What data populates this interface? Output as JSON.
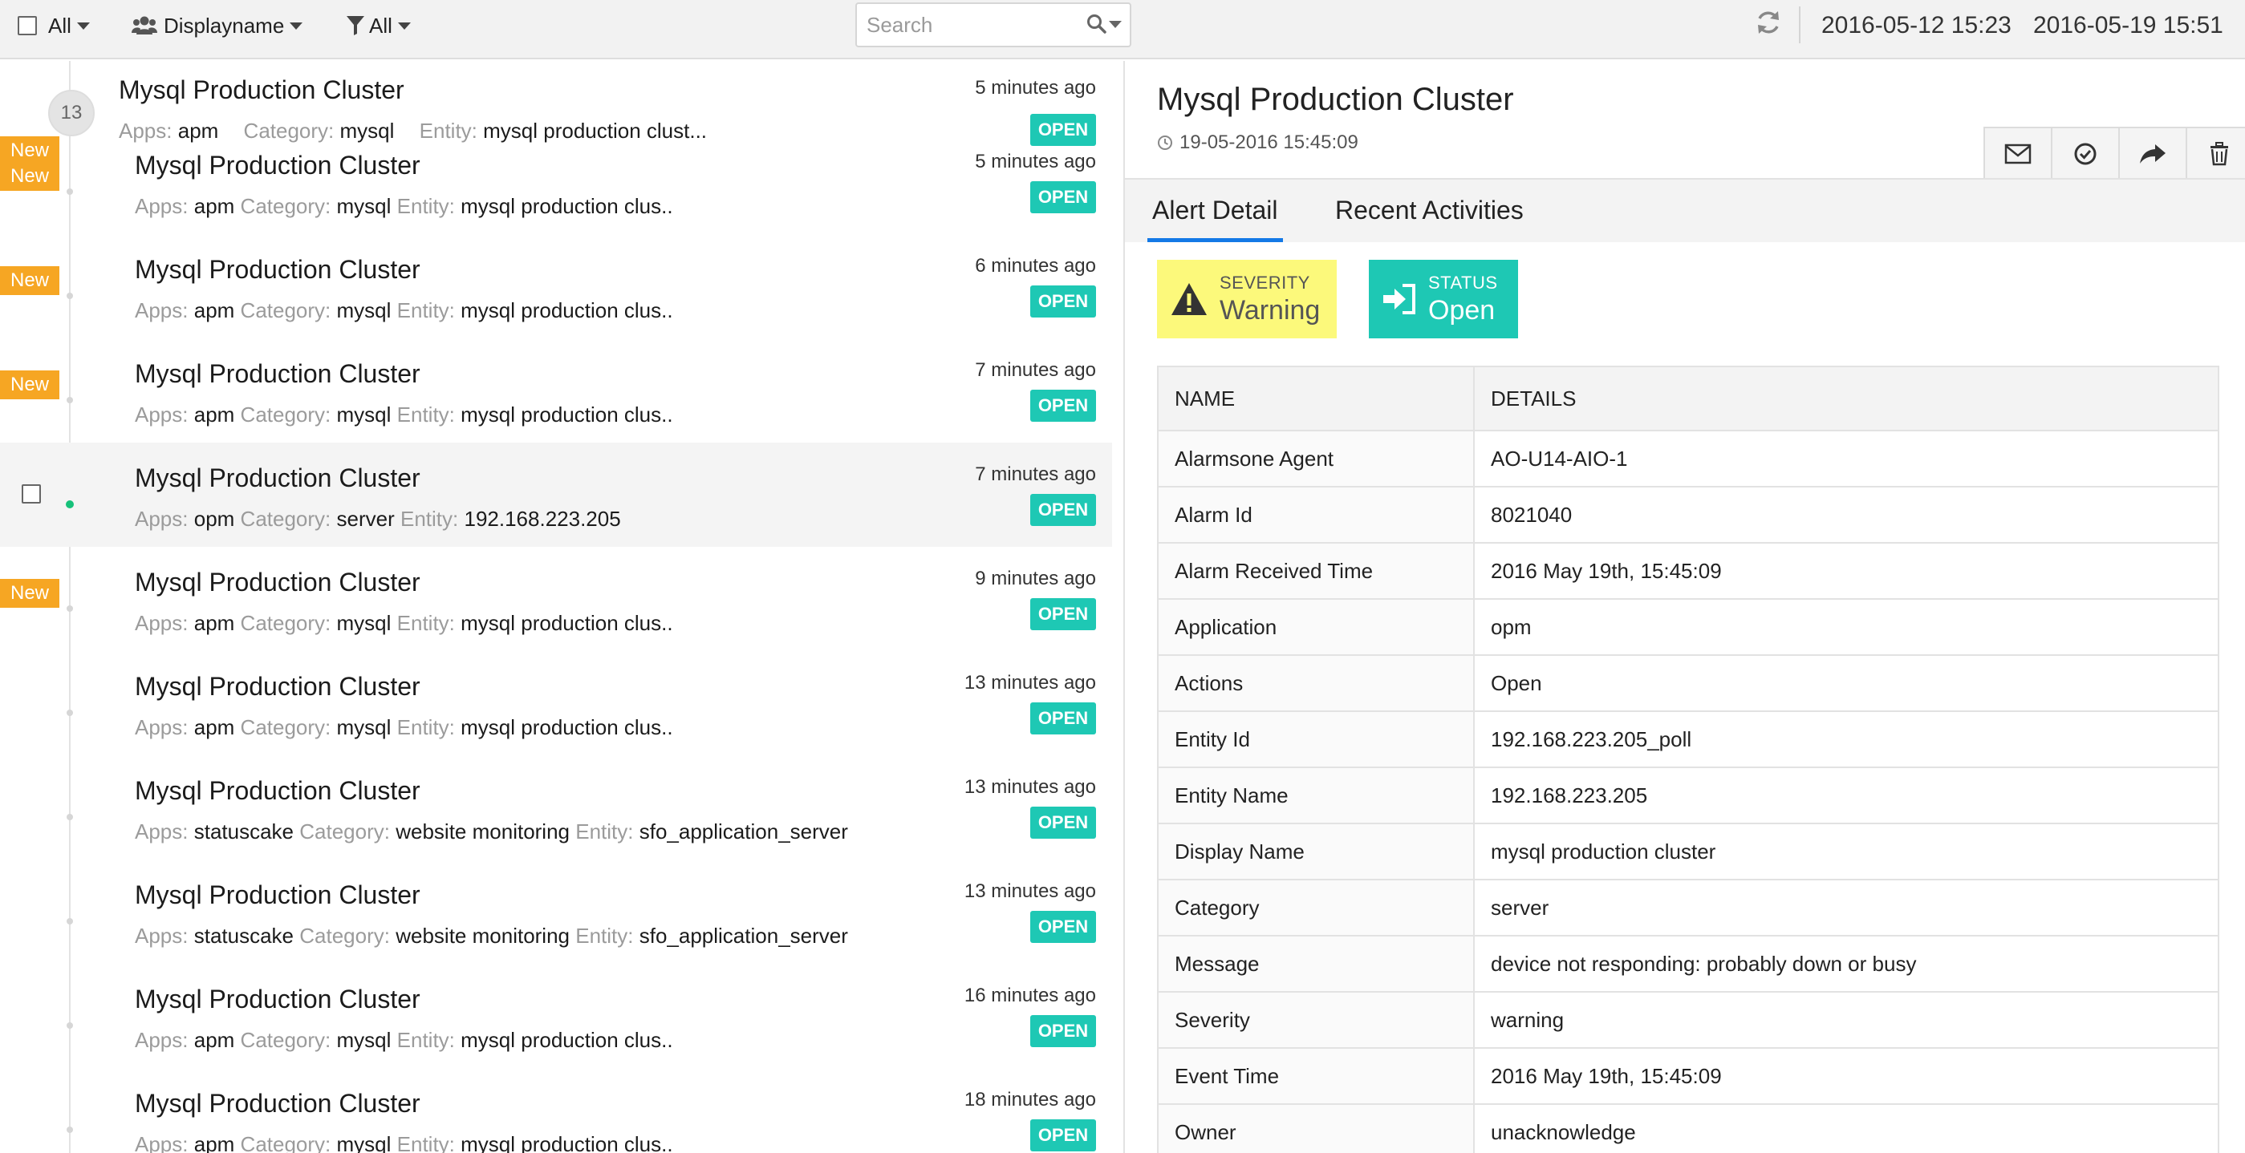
{
  "toolbar": {
    "select_all_label": "All",
    "group_by_label": "Displayname",
    "filter_label": "All",
    "search_placeholder": "Search",
    "date_from": "2016-05-12 15:23",
    "date_to": "2016-05-19 15:51"
  },
  "list": {
    "group_count": "13",
    "first_item": {
      "title": "Mysql Production Cluster",
      "time": "5 minutes ago",
      "status": "OPEN",
      "new_label": "New",
      "apps_label": "Apps:",
      "apps": "apm",
      "category_label": "Category:",
      "category": "mysql",
      "entity_label": "Entity:",
      "entity": "mysql production clust..."
    },
    "items": [
      {
        "title": "Mysql Production Cluster",
        "time": "5 minutes ago",
        "status": "OPEN",
        "new_label": "New",
        "apps_label": "Apps:",
        "apps": "apm",
        "category_label": "Category:",
        "category": "mysql",
        "entity_label": "Entity:",
        "entity": "mysql production clus.."
      },
      {
        "title": "Mysql Production Cluster",
        "time": "6 minutes ago",
        "status": "OPEN",
        "new_label": "New",
        "apps_label": "Apps:",
        "apps": "apm",
        "category_label": "Category:",
        "category": "mysql",
        "entity_label": "Entity:",
        "entity": "mysql production clus.."
      },
      {
        "title": "Mysql Production Cluster",
        "time": "7 minutes ago",
        "status": "OPEN",
        "new_label": "New",
        "apps_label": "Apps:",
        "apps": "apm",
        "category_label": "Category:",
        "category": "mysql",
        "entity_label": "Entity:",
        "entity": "mysql production clus.."
      },
      {
        "title": "Mysql Production Cluster",
        "time": "7 minutes ago",
        "status": "OPEN",
        "new_label": null,
        "apps_label": "Apps:",
        "apps": "opm",
        "category_label": "Category:",
        "category": "server",
        "entity_label": "Entity:",
        "entity": "192.168.223.205",
        "selected": true
      },
      {
        "title": "Mysql Production Cluster",
        "time": "9 minutes ago",
        "status": "OPEN",
        "new_label": "New",
        "apps_label": "Apps:",
        "apps": "apm",
        "category_label": "Category:",
        "category": "mysql",
        "entity_label": "Entity:",
        "entity": "mysql production clus.."
      },
      {
        "title": "Mysql Production Cluster",
        "time": "13 minutes ago",
        "status": "OPEN",
        "new_label": null,
        "apps_label": "Apps:",
        "apps": "apm",
        "category_label": "Category:",
        "category": "mysql",
        "entity_label": "Entity:",
        "entity": "mysql production clus.."
      },
      {
        "title": "Mysql Production Cluster",
        "time": "13 minutes ago",
        "status": "OPEN",
        "new_label": null,
        "apps_label": "Apps:",
        "apps": "statuscake",
        "category_label": "Category:",
        "category": "website monitoring",
        "entity_label": "Entity:",
        "entity": "sfo_application_server"
      },
      {
        "title": "Mysql Production Cluster",
        "time": "13 minutes ago",
        "status": "OPEN",
        "new_label": null,
        "apps_label": "Apps:",
        "apps": "statuscake",
        "category_label": "Category:",
        "category": "website monitoring",
        "entity_label": "Entity:",
        "entity": "sfo_application_server"
      },
      {
        "title": "Mysql Production Cluster",
        "time": "16 minutes ago",
        "status": "OPEN",
        "new_label": null,
        "apps_label": "Apps:",
        "apps": "apm",
        "category_label": "Category:",
        "category": "mysql",
        "entity_label": "Entity:",
        "entity": "mysql production clus.."
      },
      {
        "title": "Mysql Production Cluster",
        "time": "18 minutes ago",
        "status": "OPEN",
        "new_label": null,
        "apps_label": "Apps:",
        "apps": "apm",
        "category_label": "Category:",
        "category": "mysql",
        "entity_label": "Entity:",
        "entity": "mysql production clus.."
      }
    ]
  },
  "detail": {
    "title": "Mysql Production Cluster",
    "timestamp": "19-05-2016 15:45:09",
    "action_icons": [
      "envelope-icon",
      "check-circle-icon",
      "share-icon",
      "trash-icon"
    ],
    "tabs": [
      "Alert Detail",
      "Recent Activities"
    ],
    "severity_label": "SEVERITY",
    "severity_value": "Warning",
    "status_label": "STATUS",
    "status_value": "Open",
    "table_headers": [
      "NAME",
      "DETAILS"
    ],
    "rows": [
      [
        "Alarmsone Agent",
        "AO-U14-AIO-1"
      ],
      [
        "Alarm Id",
        "8021040"
      ],
      [
        "Alarm Received Time",
        "2016 May 19th, 15:45:09"
      ],
      [
        "Application",
        "opm"
      ],
      [
        "Actions",
        "Open"
      ],
      [
        "Entity Id",
        "192.168.223.205_poll"
      ],
      [
        "Entity Name",
        "192.168.223.205"
      ],
      [
        "Display Name",
        "mysql production cluster"
      ],
      [
        "Category",
        "server"
      ],
      [
        "Message",
        "device not responding: probably down or busy"
      ],
      [
        "Severity",
        "warning"
      ],
      [
        "Event Time",
        "2016 May 19th, 15:45:09"
      ],
      [
        "Owner",
        "unacknowledge"
      ]
    ]
  },
  "colors": {
    "accent_tab": "#1479e6",
    "open_badge": "#1ec8b4",
    "new_badge": "#f6a623",
    "warning_chip": "#fcf97b",
    "status_chip": "#1ec8b4"
  }
}
